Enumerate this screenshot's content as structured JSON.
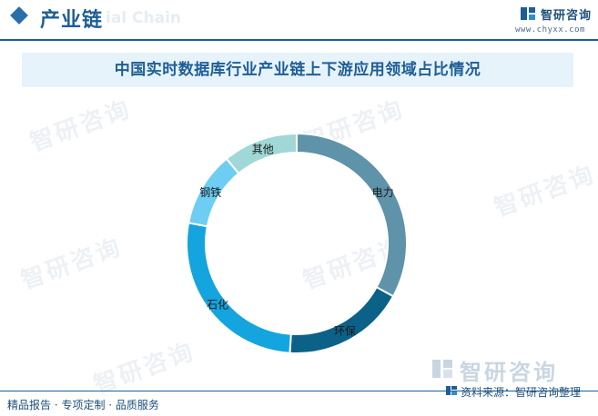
{
  "header": {
    "title": "产业链",
    "ghost_text": "ial Chain",
    "logo_name": "智研咨询",
    "logo_url": "www.chyxx.com"
  },
  "watermark_text": "智研咨询",
  "footer": {
    "left_text": "精品报告 · 专项定制 · 品质服务",
    "brand_text": "智研咨询",
    "source_text": "资料来源：智研咨询整理"
  },
  "colors": {
    "accent": "#1d5e96",
    "title_band": "#e7f3fb"
  },
  "chart_data": {
    "type": "pie",
    "donut": true,
    "title": "中国实时数据库行业产业链上下游应用领域占比情况",
    "unit": "%",
    "start": "top",
    "direction": "clockwise",
    "slices": [
      {
        "label": "电力",
        "value": 33,
        "color": "#5e93aa"
      },
      {
        "label": "环保",
        "value": 18,
        "color": "#0b6188"
      },
      {
        "label": "石化",
        "value": 27,
        "color": "#14a4de"
      },
      {
        "label": "钢铁",
        "value": 11,
        "color": "#6dcdf3"
      },
      {
        "label": "其他",
        "value": 11,
        "color": "#9fd8d6"
      }
    ],
    "legend": "none"
  }
}
